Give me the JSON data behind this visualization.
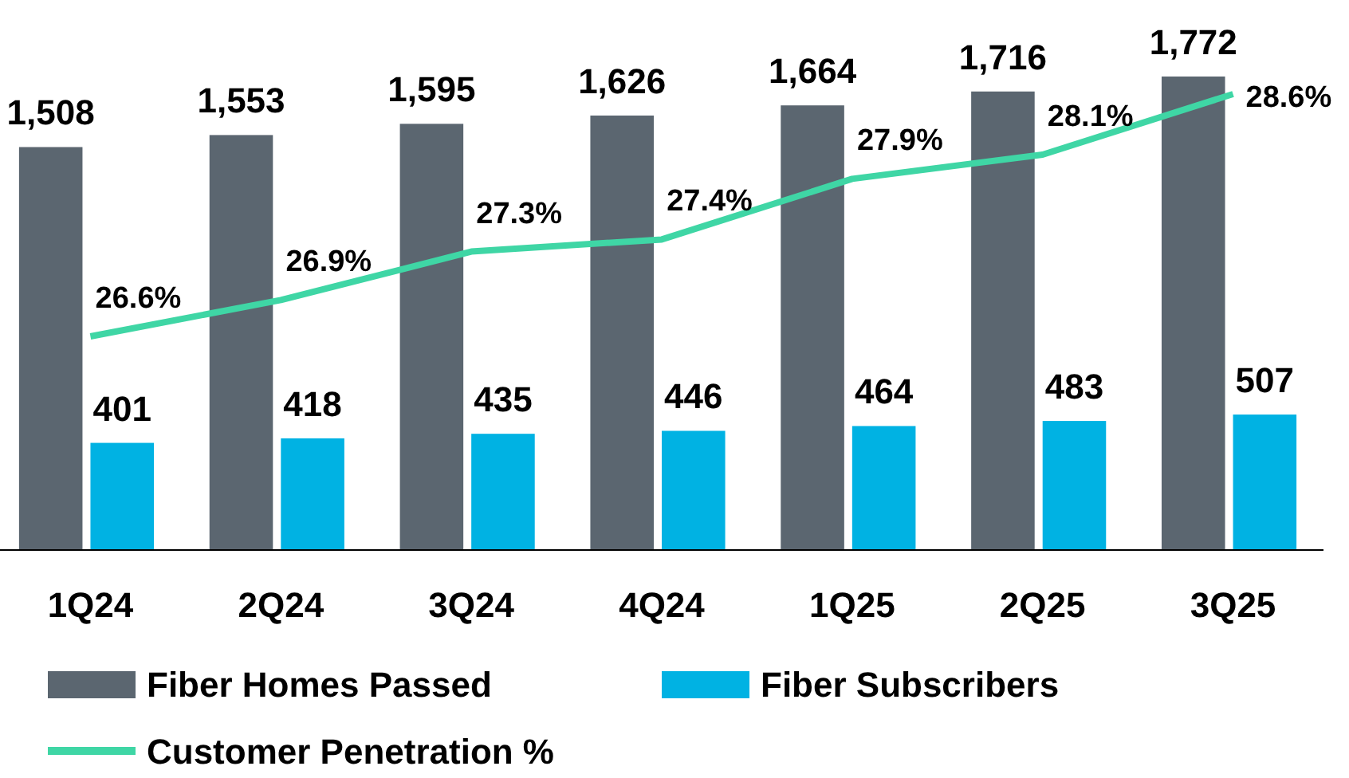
{
  "chart_data": {
    "type": "bar",
    "categories": [
      "1Q24",
      "2Q24",
      "3Q24",
      "4Q24",
      "1Q25",
      "2Q25",
      "3Q25"
    ],
    "series": [
      {
        "name": "Fiber Homes Passed",
        "color": "#5b6670",
        "values": [
          1508,
          1553,
          1595,
          1626,
          1664,
          1716,
          1772
        ],
        "value_labels": [
          "1,508",
          "1,553",
          "1,595",
          "1,626",
          "1,664",
          "1,716",
          "1,772"
        ]
      },
      {
        "name": "Fiber Subscribers",
        "color": "#00b2e3",
        "values": [
          401,
          418,
          435,
          446,
          464,
          483,
          507
        ],
        "value_labels": [
          "401",
          "418",
          "435",
          "446",
          "464",
          "483",
          "507"
        ]
      },
      {
        "name": "Customer Penetration %",
        "type": "line",
        "axis": "y2",
        "color": "#3fd6a5",
        "values": [
          26.6,
          26.9,
          27.3,
          27.4,
          27.9,
          28.1,
          28.6
        ],
        "value_labels": [
          "26.6%",
          "26.9%",
          "27.3%",
          "27.4%",
          "27.9%",
          "28.1%",
          "28.6%"
        ]
      }
    ],
    "tick_labels": "x",
    "legend": "bottom",
    "marker": "none"
  }
}
